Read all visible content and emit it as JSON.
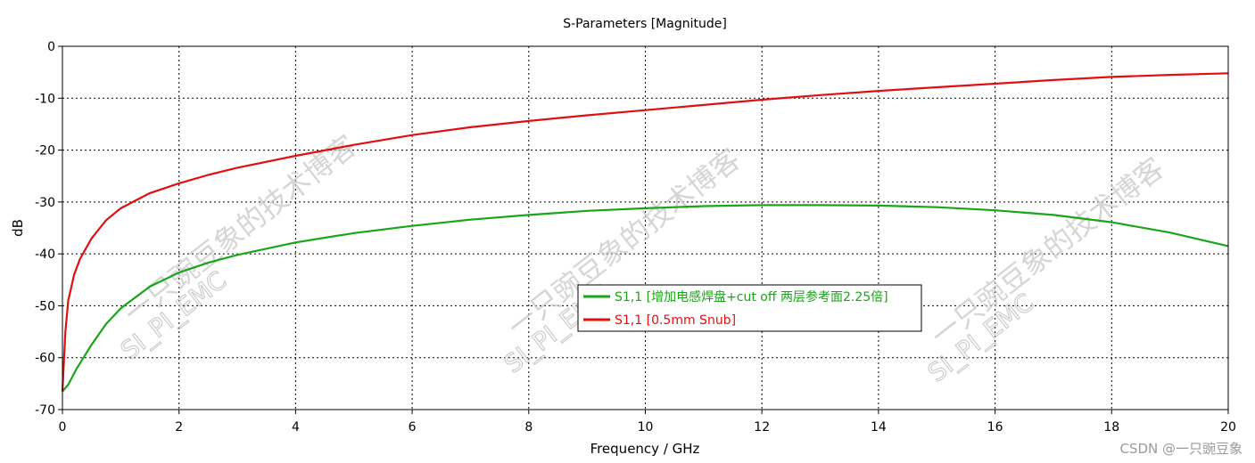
{
  "chart_data": {
    "type": "line",
    "title": "S-Parameters [Magnitude]",
    "xlabel": "Frequency / GHz",
    "ylabel": "dB",
    "xlim": [
      0,
      20
    ],
    "ylim": [
      -70,
      0
    ],
    "xticks": [
      0,
      2,
      4,
      6,
      8,
      10,
      12,
      14,
      16,
      18,
      20
    ],
    "yticks": [
      0,
      -10,
      -20,
      -30,
      -40,
      -50,
      -60,
      -70
    ],
    "grid": true,
    "legend_position": "center",
    "series": [
      {
        "name": "S1,1 [增加电感焊盘+cut off 两层参考面2.25倍]",
        "color": "#1aa51a",
        "x": [
          0,
          0.1,
          0.25,
          0.5,
          0.75,
          1,
          1.5,
          2,
          2.5,
          3,
          4,
          5,
          6,
          7,
          8,
          9,
          10,
          11,
          12,
          13,
          14,
          15,
          16,
          17,
          18,
          19,
          20
        ],
        "y": [
          -66.5,
          -65.2,
          -62.0,
          -57.5,
          -53.5,
          -50.5,
          -46.3,
          -43.6,
          -41.7,
          -40.2,
          -37.8,
          -36.0,
          -34.6,
          -33.4,
          -32.5,
          -31.7,
          -31.2,
          -30.8,
          -30.6,
          -30.6,
          -30.7,
          -31.0,
          -31.6,
          -32.5,
          -33.9,
          -35.9,
          -38.5
        ]
      },
      {
        "name": "S1,1 [0.5mm Snub]",
        "color": "#e01010",
        "x": [
          0,
          0.05,
          0.1,
          0.2,
          0.3,
          0.5,
          0.75,
          1,
          1.5,
          2,
          2.5,
          3,
          4,
          5,
          6,
          7,
          8,
          9,
          10,
          11,
          12,
          13,
          14,
          15,
          16,
          17,
          18,
          19,
          20
        ],
        "y": [
          -66.5,
          -55.0,
          -49.0,
          -44.0,
          -41.0,
          -37.0,
          -33.5,
          -31.2,
          -28.3,
          -26.4,
          -24.8,
          -23.4,
          -21.1,
          -19.0,
          -17.1,
          -15.6,
          -14.4,
          -13.3,
          -12.3,
          -11.3,
          -10.3,
          -9.4,
          -8.6,
          -7.9,
          -7.2,
          -6.5,
          -5.9,
          -5.5,
          -5.2
        ]
      }
    ]
  },
  "watermark": {
    "chinese": "一只豌豆象的技术博客",
    "latin": "SI_PI_EMC"
  },
  "credit": "CSDN @一只豌豆象"
}
